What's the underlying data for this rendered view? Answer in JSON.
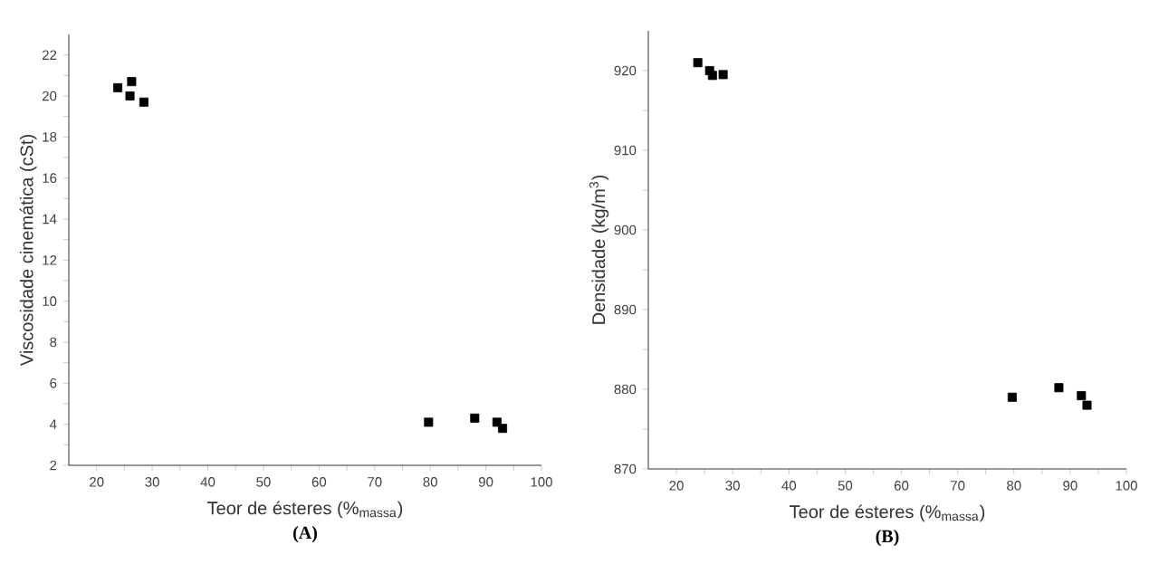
{
  "chart_data": [
    {
      "type": "scatter",
      "title": "(A)",
      "xlabel": "Teor de ésteres (%$_{massa}$)",
      "ylabel": "Viscosidade cinemática (cSt)",
      "marker": "square",
      "grid": false,
      "legend": false,
      "xlim": [
        15,
        100
      ],
      "ylim": [
        2,
        23
      ],
      "xticks": [
        20,
        {
          "value": 25,
          "label": null
        },
        30,
        {
          "value": 35,
          "label": null
        },
        40,
        {
          "value": 45,
          "label": null
        },
        50,
        {
          "value": 55,
          "label": null
        },
        60,
        {
          "value": 65,
          "label": null
        },
        70,
        {
          "value": 75,
          "label": null
        },
        80,
        {
          "value": 85,
          "label": null
        },
        90,
        {
          "value": 95,
          "label": null
        },
        100
      ],
      "yticks": [
        2,
        {
          "value": 3,
          "label": null
        },
        4,
        {
          "value": 5,
          "label": null
        },
        6,
        {
          "value": 7,
          "label": null
        },
        8,
        {
          "value": 9,
          "label": null
        },
        10,
        {
          "value": 11,
          "label": null
        },
        12,
        {
          "value": 13,
          "label": null
        },
        14,
        {
          "value": 15,
          "label": null
        },
        16,
        {
          "value": 17,
          "label": null
        },
        18,
        {
          "value": 19,
          "label": null
        },
        20,
        {
          "value": 21,
          "label": null
        },
        22
      ],
      "series": [
        {
          "color": "#000000",
          "x": [
            23.8,
            26.0,
            26.3,
            28.5,
            79.7,
            88.0,
            92.0,
            93.0
          ],
          "values": [
            20.4,
            20.0,
            20.7,
            19.7,
            4.1,
            4.3,
            4.1,
            3.8
          ]
        }
      ]
    },
    {
      "type": "scatter",
      "title": "(B)",
      "xlabel": "Teor de ésteres (%$_{massa}$)",
      "ylabel": "Densidade (kg/m$^{3}$)",
      "marker": "square",
      "grid": false,
      "legend": false,
      "xlim": [
        15,
        100
      ],
      "ylim": [
        870,
        925
      ],
      "xticks": [
        20,
        {
          "value": 25,
          "label": null
        },
        30,
        {
          "value": 35,
          "label": null
        },
        40,
        {
          "value": 45,
          "label": null
        },
        50,
        {
          "value": 55,
          "label": null
        },
        60,
        {
          "value": 65,
          "label": null
        },
        70,
        {
          "value": 75,
          "label": null
        },
        80,
        {
          "value": 85,
          "label": null
        },
        90,
        {
          "value": 95,
          "label": null
        },
        100
      ],
      "yticks": [
        870,
        {
          "value": 875,
          "label": null
        },
        880,
        {
          "value": 885,
          "label": null
        },
        890,
        {
          "value": 895,
          "label": null
        },
        900,
        {
          "value": 905,
          "label": null
        },
        910,
        {
          "value": 915,
          "label": null
        },
        920
      ],
      "series": [
        {
          "color": "#000000",
          "x": [
            23.8,
            25.9,
            26.4,
            28.3,
            79.7,
            88.0,
            92.0,
            93.0
          ],
          "values": [
            921.0,
            920.0,
            919.4,
            919.5,
            879.0,
            880.2,
            879.2,
            878.0
          ]
        }
      ]
    }
  ]
}
